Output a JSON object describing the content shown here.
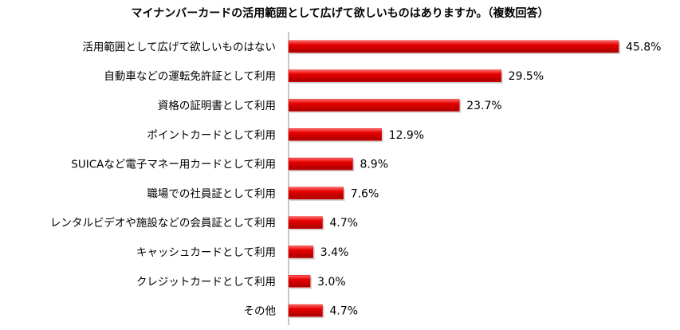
{
  "chart_data": {
    "type": "bar",
    "orientation": "horizontal",
    "title": "マイナンバーカードの活用範囲として広げて欲しいものはありますか。（複数回答）",
    "categories": [
      "活用範囲として広げて欲しいものはない",
      "自動車などの運転免許証として利用",
      "資格の証明書として利用",
      "ポイントカードとして利用",
      "SUICAなど電子マネー用カードとして利用",
      "職場での社員証として利用",
      "レンタルビデオや施設などの会員証として利用",
      "キャッシュカードとして利用",
      "クレジットカードとして利用",
      "その他"
    ],
    "values": [
      45.8,
      29.5,
      23.7,
      12.9,
      8.9,
      7.6,
      4.7,
      3.4,
      3.0,
      4.7
    ],
    "value_labels": [
      "45.8%",
      "29.5%",
      "23.7%",
      "12.9%",
      "8.9%",
      "7.6%",
      "4.7%",
      "3.4%",
      "3.0%",
      "4.7%"
    ],
    "xlim": [
      0,
      50
    ],
    "unit": "%",
    "bar_color": "#e60000",
    "grid": false,
    "legend": "none"
  }
}
